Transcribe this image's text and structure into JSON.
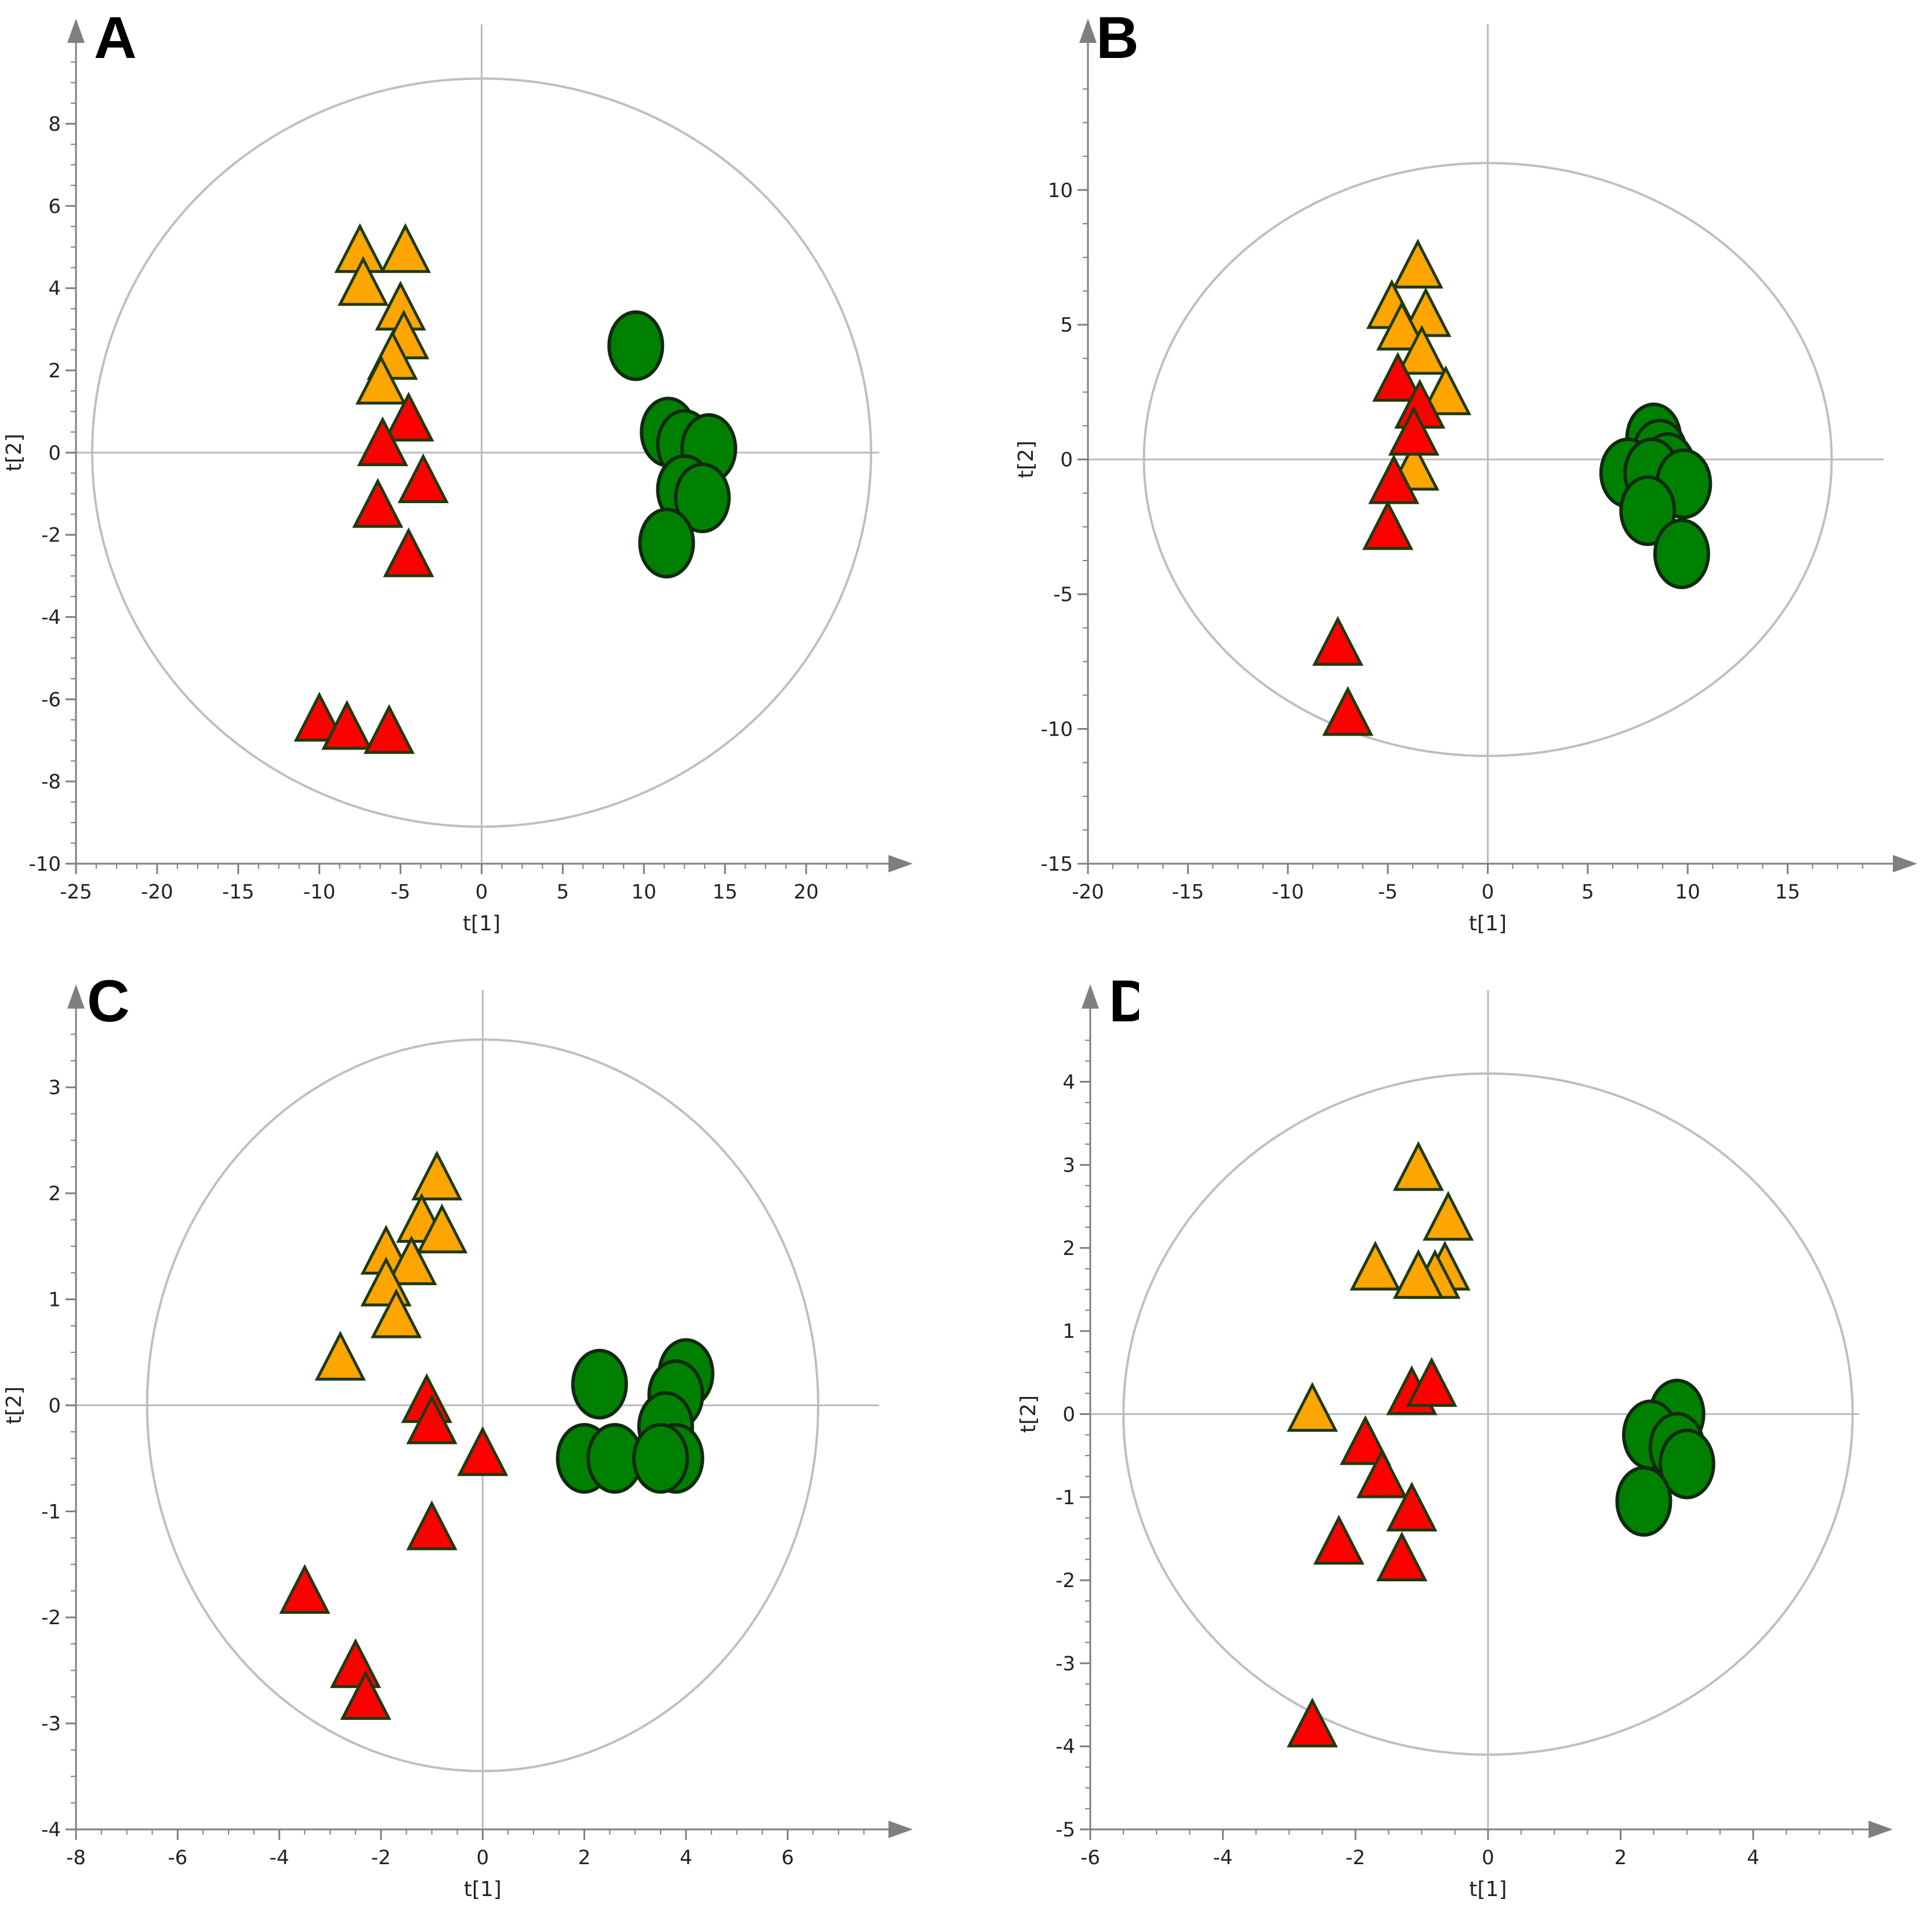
{
  "colors": {
    "orange_fill": "#FFA500",
    "red_fill": "#FF0000",
    "green_fill": "#008000",
    "marker_stroke": "#1E3A0F",
    "axis": "#7F7F7F",
    "ellipse": "#BFBFBF"
  },
  "chart_data": [
    {
      "panel": "A",
      "type": "scatter",
      "xlabel": "t[1]",
      "ylabel": "t[2]",
      "xlim": [
        -25,
        24.5
      ],
      "ylim": [
        -10,
        9.6
      ],
      "xticks": [
        -25,
        -20,
        -15,
        -10,
        -5,
        0,
        5,
        10,
        15,
        20
      ],
      "yticks": [
        -10,
        -8,
        -6,
        -4,
        -2,
        0,
        2,
        4,
        6,
        8
      ],
      "ellipse": {
        "rx": 24,
        "ry": 9.1
      },
      "series": [
        {
          "name": "orange",
          "marker": "triangle",
          "color": "#FFA500",
          "points": [
            [
              -7.5,
              4.8
            ],
            [
              -4.7,
              4.8
            ],
            [
              -7.3,
              4.0
            ],
            [
              -5.0,
              3.4
            ],
            [
              -4.8,
              2.7
            ],
            [
              -5.5,
              2.2
            ],
            [
              -6.2,
              1.6
            ]
          ]
        },
        {
          "name": "red",
          "marker": "triangle",
          "color": "#FF0000",
          "points": [
            [
              -4.5,
              0.7
            ],
            [
              -6.1,
              0.1
            ],
            [
              -3.6,
              -0.8
            ],
            [
              -6.4,
              -1.4
            ],
            [
              -4.5,
              -2.6
            ],
            [
              -10.0,
              -6.6
            ],
            [
              -8.3,
              -6.8
            ],
            [
              -5.7,
              -6.9
            ]
          ]
        },
        {
          "name": "green",
          "marker": "circle",
          "color": "#008000",
          "points": [
            [
              9.5,
              2.6
            ],
            [
              11.5,
              0.5
            ],
            [
              12.5,
              0.2
            ],
            [
              14.0,
              0.1
            ],
            [
              12.5,
              -0.9
            ],
            [
              13.6,
              -1.1
            ],
            [
              11.4,
              -2.2
            ]
          ]
        }
      ]
    },
    {
      "panel": "B",
      "type": "scatter",
      "xlabel": "t[1]",
      "ylabel": "t[2]",
      "xlim": [
        -20,
        19.8
      ],
      "ylim": [
        -15,
        14.9
      ],
      "xticks": [
        -20,
        -15,
        -10,
        -5,
        0,
        5,
        10,
        15
      ],
      "yticks": [
        -15,
        -10,
        -5,
        0,
        5,
        10
      ],
      "ellipse": {
        "rx": 17.2,
        "ry": 11.0
      },
      "series": [
        {
          "name": "orange",
          "marker": "triangle",
          "color": "#FFA500",
          "points": [
            [
              -3.5,
              7.0
            ],
            [
              -4.8,
              5.5
            ],
            [
              -3.1,
              5.2
            ],
            [
              -4.3,
              4.7
            ],
            [
              -3.3,
              3.8
            ],
            [
              -2.1,
              2.3
            ],
            [
              -3.7,
              -0.5
            ]
          ]
        },
        {
          "name": "red",
          "marker": "triangle",
          "color": "#FF0000",
          "points": [
            [
              -4.5,
              2.8
            ],
            [
              -3.4,
              1.8
            ],
            [
              -3.7,
              0.8
            ],
            [
              -4.7,
              -1.0
            ],
            [
              -5.0,
              -2.7
            ],
            [
              -7.5,
              -7.0
            ],
            [
              -7.0,
              -9.6
            ]
          ]
        },
        {
          "name": "green",
          "marker": "circle",
          "color": "#008000",
          "points": [
            [
              8.3,
              0.8
            ],
            [
              8.6,
              0.2
            ],
            [
              7.0,
              -0.5
            ],
            [
              9.0,
              -0.3
            ],
            [
              8.2,
              -0.5
            ],
            [
              9.8,
              -0.9
            ],
            [
              8.0,
              -1.9
            ],
            [
              9.7,
              -3.5
            ]
          ]
        }
      ]
    },
    {
      "panel": "C",
      "type": "scatter",
      "xlabel": "t[1]",
      "ylabel": "t[2]",
      "xlim": [
        -8,
        7.8
      ],
      "ylim": [
        -4,
        3.6
      ],
      "xticks": [
        -8,
        -6,
        -4,
        -2,
        0,
        2,
        4,
        6
      ],
      "yticks": [
        -4,
        -3,
        -2,
        -1,
        0,
        1,
        2,
        3
      ],
      "ellipse": {
        "rx": 6.6,
        "ry": 3.45
      },
      "series": [
        {
          "name": "orange",
          "marker": "triangle",
          "color": "#FFA500",
          "points": [
            [
              -0.9,
              2.1
            ],
            [
              -1.2,
              1.7
            ],
            [
              -0.8,
              1.6
            ],
            [
              -1.9,
              1.4
            ],
            [
              -1.4,
              1.3
            ],
            [
              -1.9,
              1.1
            ],
            [
              -1.7,
              0.8
            ],
            [
              -2.8,
              0.4
            ]
          ]
        },
        {
          "name": "red",
          "marker": "triangle",
          "color": "#FF0000",
          "points": [
            [
              -1.1,
              0.0
            ],
            [
              -1.0,
              -0.2
            ],
            [
              0.0,
              -0.5
            ],
            [
              -1.0,
              -1.2
            ],
            [
              -3.5,
              -1.8
            ],
            [
              -2.5,
              -2.5
            ],
            [
              -2.3,
              -2.8
            ]
          ]
        },
        {
          "name": "green",
          "marker": "circle",
          "color": "#008000",
          "points": [
            [
              2.3,
              0.2
            ],
            [
              4.0,
              0.3
            ],
            [
              3.8,
              0.1
            ],
            [
              3.6,
              -0.2
            ],
            [
              3.8,
              -0.5
            ],
            [
              2.0,
              -0.5
            ],
            [
              2.6,
              -0.5
            ],
            [
              3.5,
              -0.5
            ]
          ]
        }
      ]
    },
    {
      "panel": "D",
      "type": "scatter",
      "xlabel": "t[1]",
      "ylabel": "t[2]",
      "xlim": [
        -6,
        5.6
      ],
      "ylim": [
        -5,
        4.7
      ],
      "xticks": [
        -6,
        -4,
        -2,
        0,
        2,
        4
      ],
      "yticks": [
        -5,
        -4,
        -3,
        -2,
        -1,
        0,
        1,
        2,
        3,
        4
      ],
      "ellipse": {
        "rx": 5.5,
        "ry": 4.1
      },
      "series": [
        {
          "name": "orange",
          "marker": "triangle",
          "color": "#FFA500",
          "points": [
            [
              -1.05,
              2.9
            ],
            [
              -0.6,
              2.3
            ],
            [
              -1.7,
              1.7
            ],
            [
              -0.65,
              1.7
            ],
            [
              -0.8,
              1.6
            ],
            [
              -1.05,
              1.6
            ],
            [
              -2.65,
              0.0
            ]
          ]
        },
        {
          "name": "red",
          "marker": "triangle",
          "color": "#FF0000",
          "points": [
            [
              -1.15,
              0.2
            ],
            [
              -0.85,
              0.3
            ],
            [
              -1.85,
              -0.4
            ],
            [
              -1.6,
              -0.8
            ],
            [
              -1.15,
              -1.2
            ],
            [
              -2.25,
              -1.6
            ],
            [
              -1.3,
              -1.8
            ],
            [
              -2.65,
              -3.8
            ]
          ]
        },
        {
          "name": "green",
          "marker": "circle",
          "color": "#008000",
          "points": [
            [
              2.85,
              0.0
            ],
            [
              2.45,
              -0.25
            ],
            [
              2.85,
              -0.4
            ],
            [
              3.0,
              -0.6
            ],
            [
              2.35,
              -1.05
            ]
          ]
        }
      ]
    }
  ]
}
